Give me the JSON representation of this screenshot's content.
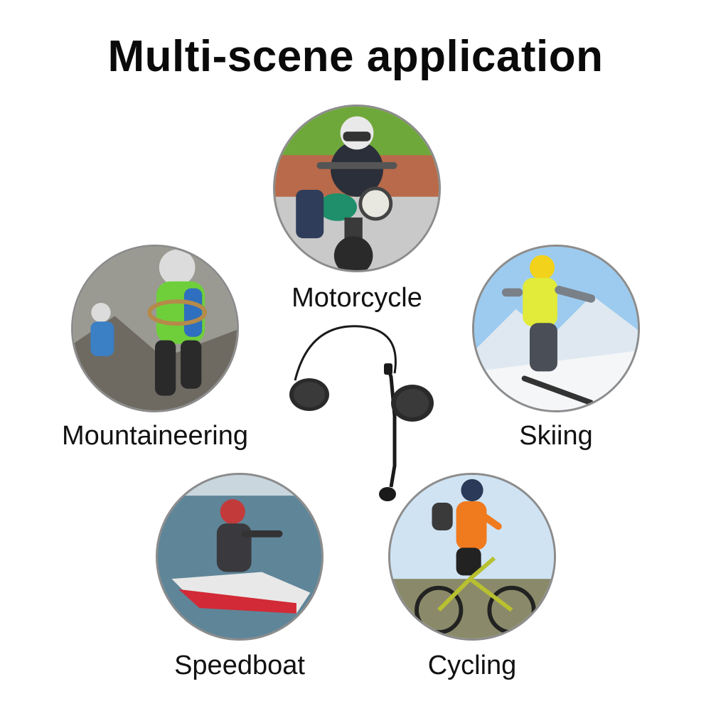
{
  "title": "Multi-scene application",
  "scenes": [
    {
      "id": "motorcycle",
      "label": "Motorcycle",
      "icon": "motorcycle-scene-photo"
    },
    {
      "id": "mountaineering",
      "label": "Mountaineering",
      "icon": "mountaineering-scene-photo"
    },
    {
      "id": "skiing",
      "label": "Skiing",
      "icon": "skiing-scene-photo"
    },
    {
      "id": "speedboat",
      "label": "Speedboat",
      "icon": "speedboat-scene-photo"
    },
    {
      "id": "cycling",
      "label": "Cycling",
      "icon": "cycling-scene-photo"
    }
  ],
  "product": {
    "icon": "helmet-headset-product-image"
  },
  "colors": {
    "ring": "#8c8c8c",
    "text": "#111111",
    "background": "#ffffff"
  }
}
